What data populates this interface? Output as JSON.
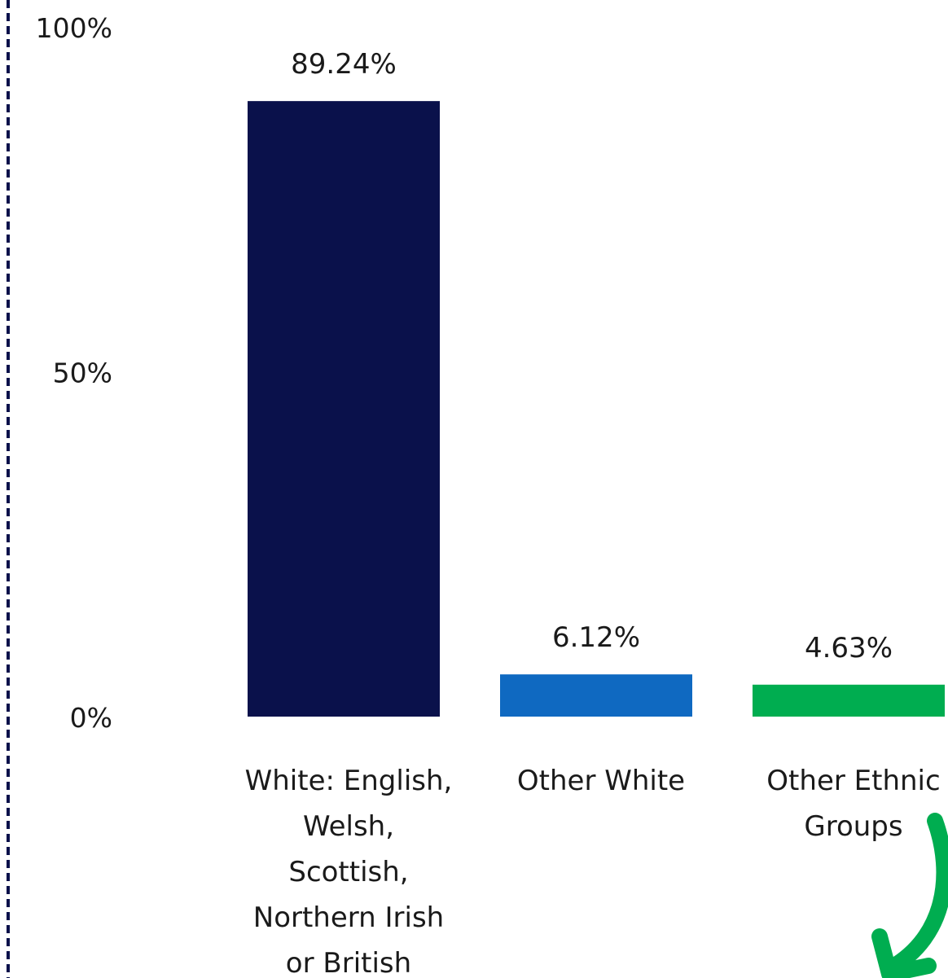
{
  "chart_data": {
    "type": "bar",
    "categories": [
      [
        "White: English,",
        "Welsh,",
        "Scottish,",
        "Northern Irish",
        "or British"
      ],
      [
        "Other White"
      ],
      [
        "Other Ethnic",
        "Groups"
      ]
    ],
    "values": [
      89.24,
      6.12,
      4.63
    ],
    "data_labels": [
      "89.24%",
      "6.12%",
      "4.63%"
    ],
    "colors": [
      "#0a114b",
      "#0f69c1",
      "#00ad50"
    ],
    "y_ticks": [
      {
        "value": 0,
        "label": "0%"
      },
      {
        "value": 50,
        "label": "50%"
      },
      {
        "value": 100,
        "label": "100%"
      }
    ],
    "ylim": [
      0,
      100
    ],
    "grid": false,
    "legend": "none",
    "frame_color": "#0a114b",
    "arrow_color": "#00ad50"
  }
}
